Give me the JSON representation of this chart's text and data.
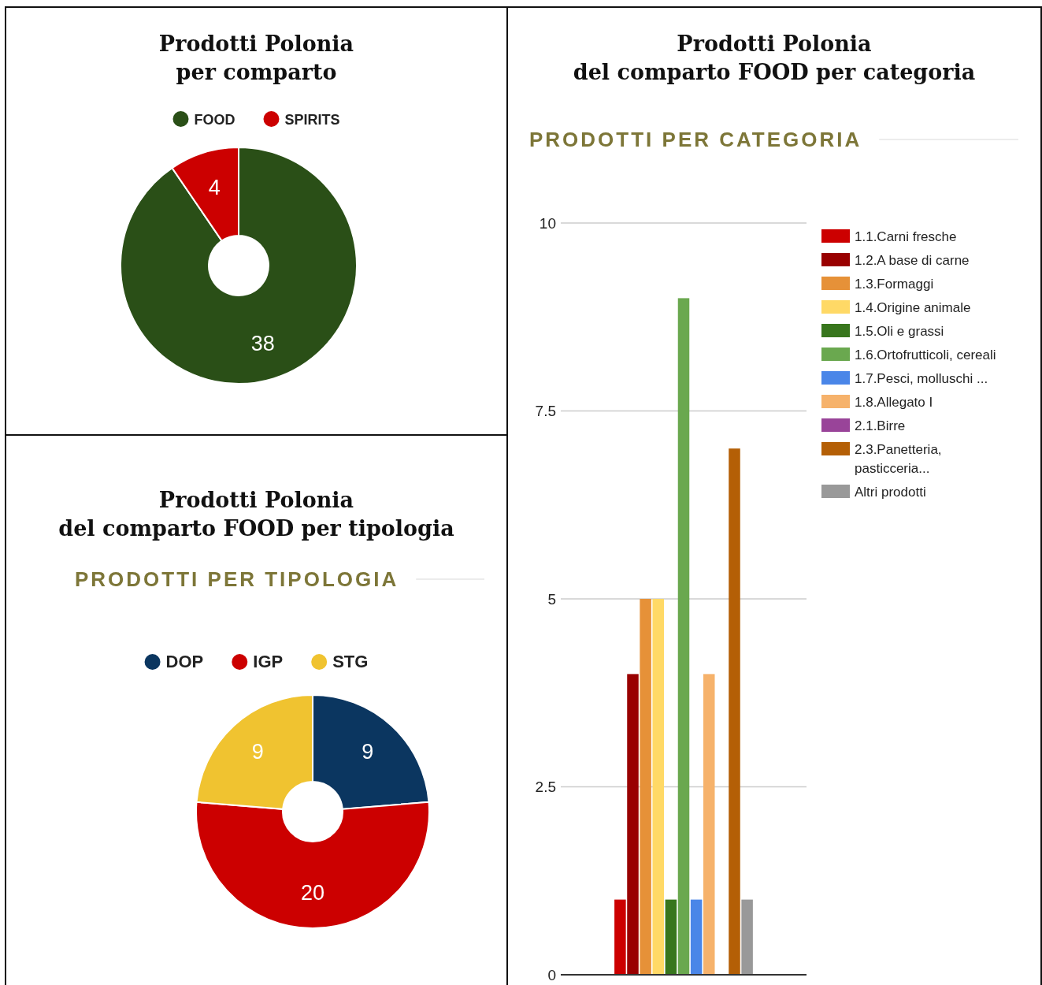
{
  "chart_data": [
    {
      "type": "donut",
      "title": "Prodotti Polonia\nper comparto",
      "categories": [
        "FOOD",
        "SPIRITS"
      ],
      "values": [
        38,
        4
      ],
      "colors": [
        "#2a4f17",
        "#cc0000"
      ],
      "legend": "top",
      "data_labels": true
    },
    {
      "type": "bar",
      "title": "Prodotti Polonia\ndel comparto FOOD per categoria",
      "subtitle": "PRODOTTI PER CATEGORIA",
      "categories": [
        null
      ],
      "series": [
        {
          "name": "1.1.Carni fresche",
          "color": "#cc0000",
          "values": [
            1
          ]
        },
        {
          "name": "1.2.A base di carne",
          "color": "#990000",
          "values": [
            4
          ]
        },
        {
          "name": "1.3.Formaggi",
          "color": "#e69138",
          "values": [
            5
          ]
        },
        {
          "name": "1.4.Origine animale",
          "color": "#ffd966",
          "values": [
            5
          ]
        },
        {
          "name": "1.5.Oli e grassi",
          "color": "#38761d",
          "values": [
            1
          ]
        },
        {
          "name": "1.6.Ortofrutticoli, cereali",
          "color": "#6aa84f",
          "values": [
            9
          ]
        },
        {
          "name": "1.7.Pesci, molluschi ...",
          "color": "#4a86e8",
          "values": [
            1
          ]
        },
        {
          "name": "1.8.Allegato I",
          "color": "#f6b26b",
          "values": [
            4
          ]
        },
        {
          "name": "2.1.Birre",
          "color": "#994499",
          "values": [
            0
          ]
        },
        {
          "name": "2.3.Panetteria, pasticceria...",
          "color": "#b45f06",
          "values": [
            7
          ]
        },
        {
          "name": "Altri prodotti",
          "color": "#999999",
          "values": [
            1
          ]
        }
      ],
      "ylim": [
        0,
        10
      ],
      "yticks": [
        0,
        2.5,
        5,
        7.5,
        10
      ],
      "grid": "y",
      "legend": "right"
    },
    {
      "type": "donut",
      "title": "Prodotti Polonia\ndel comparto FOOD per tipologia",
      "subtitle": "PRODOTTI PER TIPOLOGIA",
      "categories": [
        "DOP",
        "IGP",
        "STG"
      ],
      "values": [
        9,
        20,
        9
      ],
      "colors": [
        "#0b3660",
        "#cc0000",
        "#f0c330"
      ],
      "legend": "top",
      "data_labels": true
    }
  ]
}
